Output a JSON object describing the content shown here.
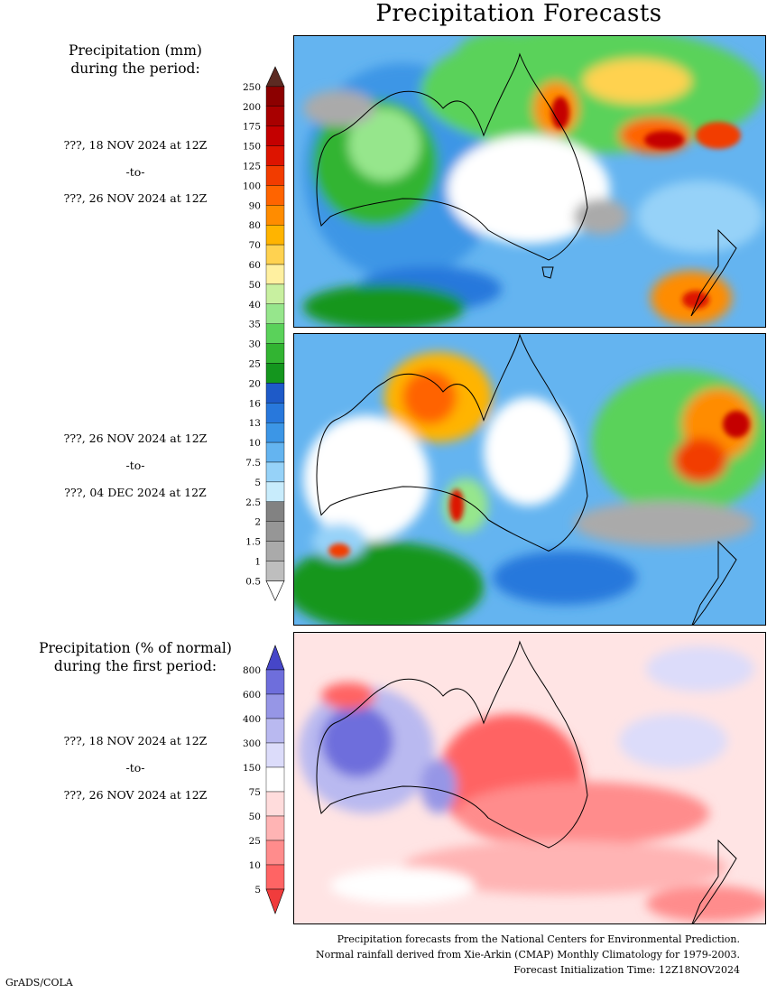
{
  "title": "Precipitation Forecasts",
  "left_labels": {
    "total_header": [
      "Precipitation (mm)",
      "during the period:"
    ],
    "period1": [
      "???, 18 NOV 2024 at 12Z",
      "-to-",
      "???, 26 NOV 2024 at 12Z"
    ],
    "period2": [
      "???, 26 NOV 2024 at 12Z",
      "-to-",
      "???, 04 DEC 2024 at 12Z"
    ],
    "percent_header": [
      "Precipitation (% of normal)",
      "during the first period:"
    ],
    "period3": [
      "???, 18 NOV 2024 at 12Z",
      "-to-",
      "???, 26 NOV 2024 at 12Z"
    ]
  },
  "colorbar_mm": {
    "labels": [
      "250",
      "200",
      "175",
      "150",
      "125",
      "100",
      "90",
      "80",
      "70",
      "60",
      "50",
      "40",
      "35",
      "30",
      "25",
      "20",
      "16",
      "13",
      "10",
      "7.5",
      "5",
      "2.5",
      "2",
      "1.5",
      "1",
      "0.5"
    ],
    "colors": [
      "#5c2a22",
      "#8c0000",
      "#a80000",
      "#c40000",
      "#dd1400",
      "#f23c00",
      "#ff6400",
      "#ff8c00",
      "#ffb400",
      "#ffd250",
      "#fff0a0",
      "#c8f0a0",
      "#96e68c",
      "#5ad25a",
      "#32b432",
      "#14961e",
      "#1e5ac8",
      "#2878dc",
      "#3c96e6",
      "#64b4f0",
      "#96d2f8",
      "#c8ecfc",
      "#828282",
      "#969696",
      "#aaaaaa",
      "#bebebe",
      "#ffffff"
    ]
  },
  "colorbar_pct": {
    "labels": [
      "800",
      "600",
      "400",
      "300",
      "150",
      "75",
      "50",
      "25",
      "10",
      "5"
    ],
    "colors": [
      "#4646c8",
      "#6e6edc",
      "#9696e6",
      "#b9b9f0",
      "#dcdcfa",
      "#ffffff",
      "#ffdcdc",
      "#ffb4b4",
      "#ff8c8c",
      "#ff6464",
      "#f03c3c"
    ]
  },
  "footer": [
    "Precipitation forecasts from the National Centers for Environmental Prediction.",
    "Normal rainfall derived from Xie-Arkin (CMAP) Monthly Climatology for 1979-2003.",
    "Forecast Initialization Time: 12Z18NOV2024"
  ],
  "credit": "GrADS/COLA"
}
